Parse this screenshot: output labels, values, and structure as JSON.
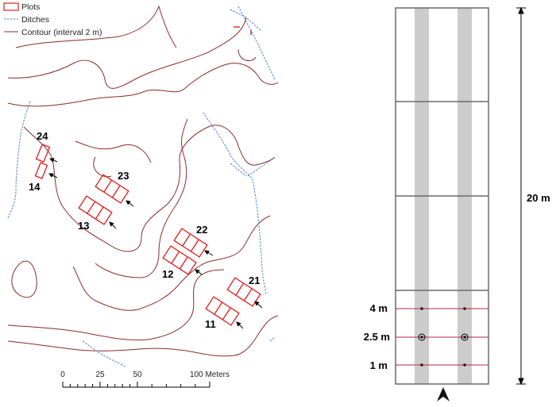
{
  "legend": {
    "plots": "Plots",
    "ditches": "Ditches",
    "contour": "Contour (interval 2 m)"
  },
  "colors": {
    "contour": "#8b2b2b",
    "ditch": "#4a7fd1",
    "plot": "#e21b1b",
    "strip": "#cccccc",
    "grid": "#6a6a6a",
    "sample_line": "#b5274d"
  },
  "plots": [
    {
      "id": "24"
    },
    {
      "id": "14"
    },
    {
      "id": "23"
    },
    {
      "id": "13"
    },
    {
      "id": "22"
    },
    {
      "id": "12"
    },
    {
      "id": "21"
    },
    {
      "id": "11"
    }
  ],
  "scale_bar": {
    "ticks": [
      "0",
      "25",
      "50",
      "100 Meters"
    ]
  },
  "plot_diagram": {
    "length_label": "20 m",
    "depth_labels": [
      "4 m",
      "2.5 m",
      "1 m"
    ]
  }
}
